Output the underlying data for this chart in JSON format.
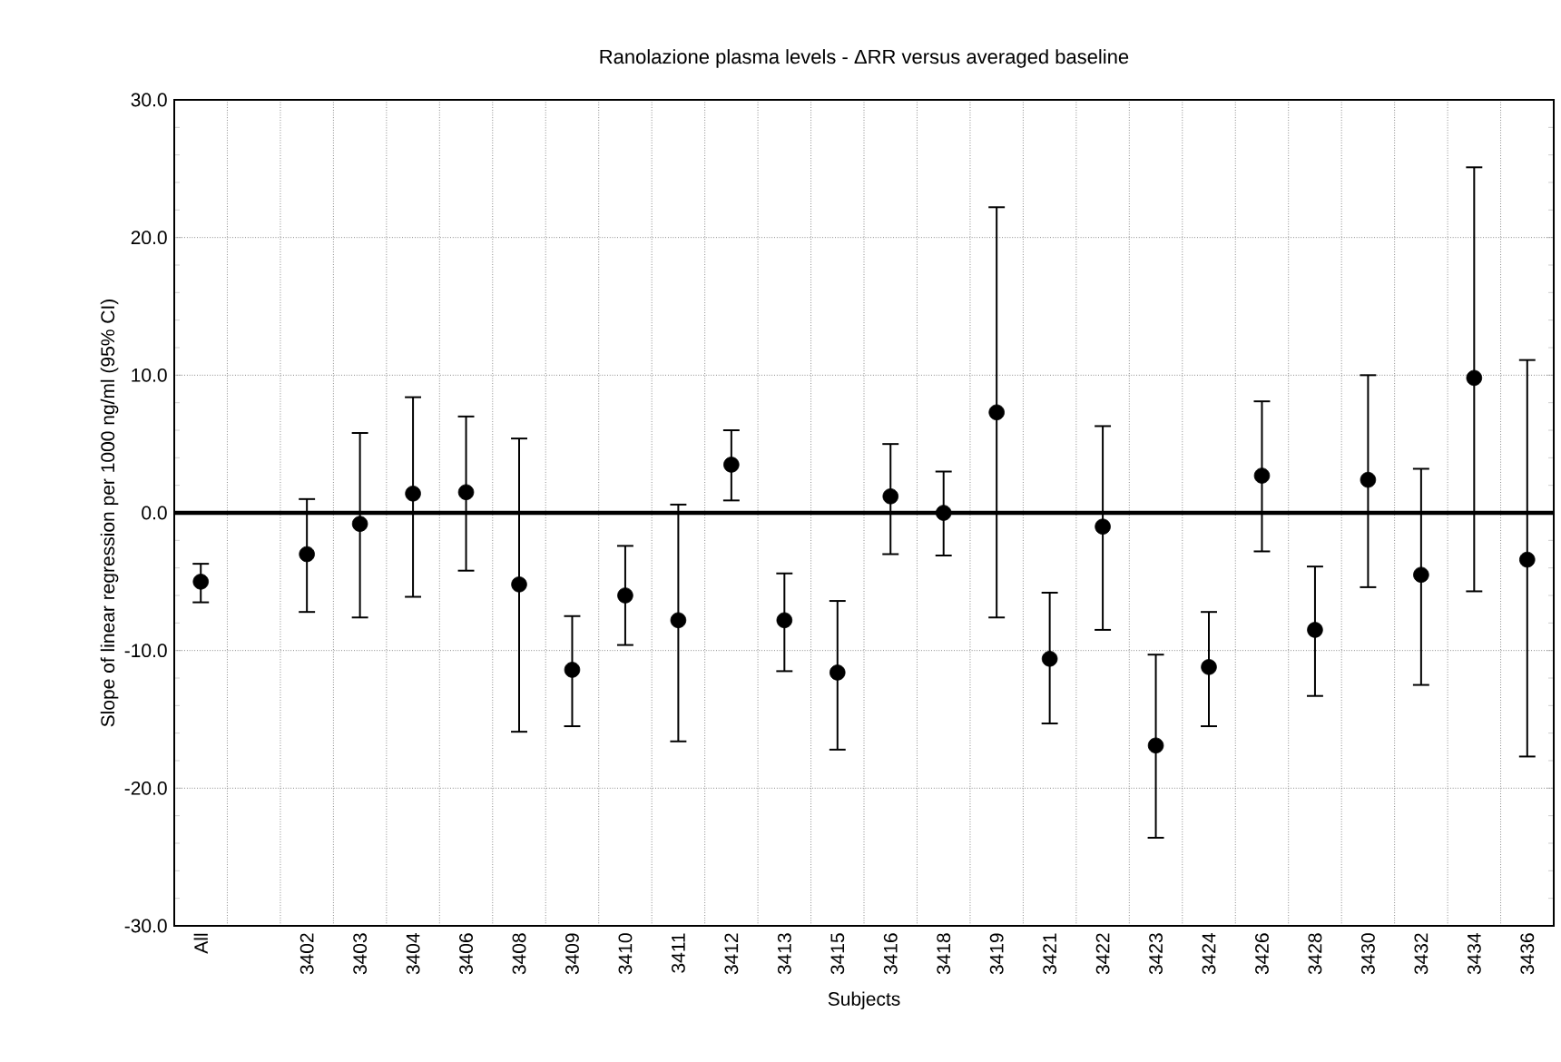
{
  "chart_data": {
    "type": "scatter",
    "title": "Ranolazione plasma levels - ΔRR versus averaged baseline",
    "xlabel": "Subjects",
    "ylabel": "Slope of linear regression per 1000 ng/ml (95% CI)",
    "categories": [
      "All",
      null,
      "3402",
      "3403",
      "3404",
      "3406",
      "3408",
      "3409",
      "3410",
      "3411",
      "3412",
      "3413",
      "3415",
      "3416",
      "3418",
      "3419",
      "3421",
      "3422",
      "3423",
      "3424",
      "3426",
      "3428",
      "3430",
      "3432",
      "3434",
      "3436"
    ],
    "values": [
      -5.0,
      null,
      -3.0,
      -0.8,
      1.4,
      1.5,
      -5.2,
      -11.4,
      -6.0,
      -7.8,
      3.5,
      -7.8,
      -11.6,
      1.2,
      0.0,
      7.3,
      -10.6,
      -1.0,
      -16.9,
      -11.2,
      2.7,
      -8.5,
      2.4,
      -4.5,
      9.8,
      -3.4
    ],
    "errors": [
      [
        -6.5,
        -3.7
      ],
      null,
      [
        -7.2,
        1.0
      ],
      [
        -7.6,
        5.8
      ],
      [
        -6.1,
        8.4
      ],
      [
        -4.2,
        7.0
      ],
      [
        -15.9,
        5.4
      ],
      [
        -15.5,
        -7.5
      ],
      [
        -9.6,
        -2.4
      ],
      [
        -16.6,
        0.6
      ],
      [
        0.9,
        6.0
      ],
      [
        -11.5,
        -4.4
      ],
      [
        -17.2,
        -6.4
      ],
      [
        -3.0,
        5.0
      ],
      [
        -3.1,
        3.0
      ],
      [
        -7.6,
        22.2
      ],
      [
        -15.3,
        -5.8
      ],
      [
        -8.5,
        6.3
      ],
      [
        -23.6,
        -10.3
      ],
      [
        -15.5,
        -7.2
      ],
      [
        -2.8,
        8.1
      ],
      [
        -13.3,
        -3.9
      ],
      [
        -5.4,
        10.0
      ],
      [
        -12.5,
        3.2
      ],
      [
        -5.7,
        25.1
      ],
      [
        -17.7,
        11.1
      ]
    ],
    "color": "#000000",
    "marker": "circle",
    "ylim": [
      -30,
      30
    ],
    "yticks": [
      {
        "value": -30,
        "label": "-30.0"
      },
      {
        "value": -20,
        "label": "-20.0"
      },
      {
        "value": -10,
        "label": "-10.0"
      },
      {
        "value": 0,
        "label": "0.0"
      },
      {
        "value": 10,
        "label": "10.0"
      },
      {
        "value": 20,
        "label": "20.0"
      },
      {
        "value": 30,
        "label": "30.0"
      }
    ],
    "grid": true,
    "ref_lines": [
      {
        "axis": "y",
        "value": 0
      }
    ]
  }
}
